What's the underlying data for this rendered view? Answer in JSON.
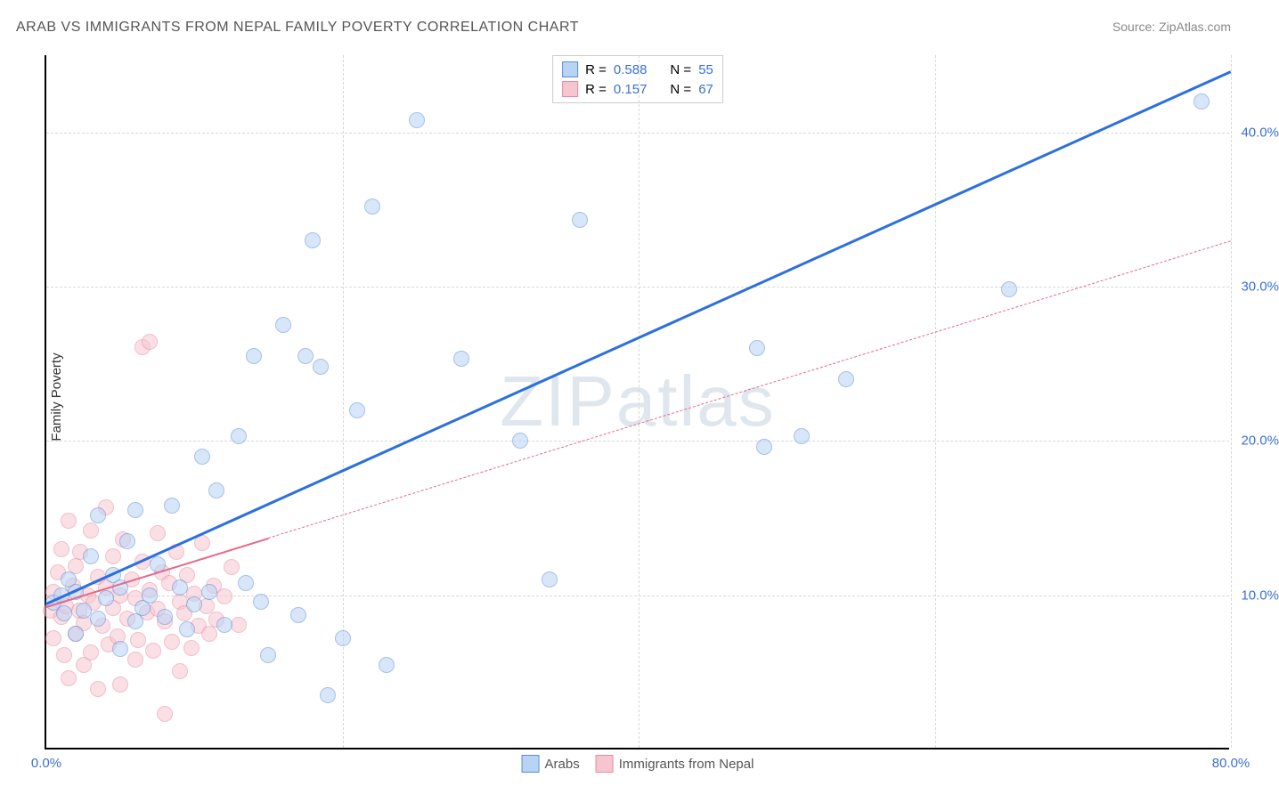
{
  "title": "ARAB VS IMMIGRANTS FROM NEPAL FAMILY POVERTY CORRELATION CHART",
  "source": "Source: ZipAtlas.com",
  "ylabel": "Family Poverty",
  "watermark": "ZIPatlas",
  "watermark_color": "#dfe6ed",
  "xlim": [
    0,
    80
  ],
  "ylim": [
    0,
    45
  ],
  "xticks": [
    {
      "v": 0,
      "label": "0.0%"
    },
    {
      "v": 80,
      "label": "80.0%"
    }
  ],
  "yticks": [
    {
      "v": 10,
      "label": "10.0%"
    },
    {
      "v": 20,
      "label": "20.0%"
    },
    {
      "v": 30,
      "label": "30.0%"
    },
    {
      "v": 40,
      "label": "40.0%"
    }
  ],
  "x_gridlines": [
    20,
    40,
    60,
    80
  ],
  "y_gridlines": [
    10,
    20,
    30,
    40
  ],
  "tick_color": "#3b6fd8",
  "grid_color": "#d8d8d8",
  "point_radius": 9,
  "point_opacity": 0.55,
  "series": {
    "arabs": {
      "label": "Arabs",
      "fill": "#b9d3f5",
      "stroke": "#5b8fd6",
      "trend_color": "#2b6fe0",
      "trend_width": 3,
      "trend_dash": "none",
      "R": "0.588",
      "N": "55",
      "trend": {
        "x1": 0,
        "y1": 9.5,
        "x2": 80,
        "y2": 44
      },
      "points": [
        [
          0.5,
          9.5
        ],
        [
          1,
          10
        ],
        [
          1.2,
          8.8
        ],
        [
          1.5,
          11
        ],
        [
          2,
          10.2
        ],
        [
          2,
          7.5
        ],
        [
          2.5,
          9
        ],
        [
          3,
          12.5
        ],
        [
          3.5,
          8.5
        ],
        [
          3.5,
          15.2
        ],
        [
          4,
          9.8
        ],
        [
          4.5,
          11.3
        ],
        [
          5,
          10.5
        ],
        [
          5,
          6.5
        ],
        [
          5.5,
          13.5
        ],
        [
          6,
          8.3
        ],
        [
          6,
          15.5
        ],
        [
          6.5,
          9.2
        ],
        [
          7,
          10
        ],
        [
          7.5,
          12
        ],
        [
          8,
          8.6
        ],
        [
          8.5,
          15.8
        ],
        [
          9,
          10.5
        ],
        [
          9.5,
          7.8
        ],
        [
          10,
          9.4
        ],
        [
          10.5,
          19
        ],
        [
          11,
          10.2
        ],
        [
          11.5,
          16.8
        ],
        [
          12,
          8.1
        ],
        [
          13,
          20.3
        ],
        [
          13.5,
          10.8
        ],
        [
          14,
          25.5
        ],
        [
          14.5,
          9.6
        ],
        [
          15,
          6.1
        ],
        [
          16,
          27.5
        ],
        [
          17,
          8.7
        ],
        [
          17.5,
          25.5
        ],
        [
          18,
          33
        ],
        [
          18.5,
          24.8
        ],
        [
          19,
          3.5
        ],
        [
          20,
          7.2
        ],
        [
          21,
          22
        ],
        [
          22,
          35.2
        ],
        [
          23,
          5.5
        ],
        [
          25,
          40.8
        ],
        [
          28,
          25.3
        ],
        [
          32,
          20
        ],
        [
          34,
          11
        ],
        [
          36,
          34.3
        ],
        [
          48,
          26
        ],
        [
          48.5,
          19.6
        ],
        [
          51,
          20.3
        ],
        [
          54,
          24
        ],
        [
          65,
          29.8
        ],
        [
          78,
          42
        ]
      ]
    },
    "nepal": {
      "label": "Immigrants from Nepal",
      "fill": "#f6c6d0",
      "stroke": "#e88ba1",
      "trend_color": "#e56a88",
      "trend_width": 2,
      "trend_dash": "6,6",
      "R": "0.157",
      "N": "67",
      "trend": {
        "x1": 0,
        "y1": 9.3,
        "x2": 80,
        "y2": 33
      },
      "trend_solid_until": 15,
      "points": [
        [
          0.3,
          9
        ],
        [
          0.5,
          10.2
        ],
        [
          0.5,
          7.2
        ],
        [
          0.8,
          11.5
        ],
        [
          1,
          8.6
        ],
        [
          1,
          13
        ],
        [
          1.2,
          6.1
        ],
        [
          1.3,
          9.3
        ],
        [
          1.5,
          14.8
        ],
        [
          1.5,
          4.6
        ],
        [
          1.8,
          10.6
        ],
        [
          2,
          11.9
        ],
        [
          2,
          7.5
        ],
        [
          2.2,
          9
        ],
        [
          2.3,
          12.8
        ],
        [
          2.5,
          5.5
        ],
        [
          2.5,
          8.2
        ],
        [
          2.8,
          10
        ],
        [
          3,
          14.2
        ],
        [
          3,
          6.3
        ],
        [
          3.2,
          9.5
        ],
        [
          3.5,
          11.2
        ],
        [
          3.5,
          3.9
        ],
        [
          3.8,
          8
        ],
        [
          4,
          10.5
        ],
        [
          4,
          15.7
        ],
        [
          4.2,
          6.8
        ],
        [
          4.5,
          9.2
        ],
        [
          4.5,
          12.5
        ],
        [
          4.8,
          7.3
        ],
        [
          5,
          10
        ],
        [
          5,
          4.2
        ],
        [
          5.2,
          13.6
        ],
        [
          5.5,
          8.5
        ],
        [
          5.8,
          11
        ],
        [
          6,
          9.8
        ],
        [
          6,
          5.8
        ],
        [
          6.2,
          7.1
        ],
        [
          6.5,
          12.2
        ],
        [
          6.5,
          26.1
        ],
        [
          6.8,
          8.9
        ],
        [
          7,
          10.3
        ],
        [
          7,
          26.4
        ],
        [
          7.2,
          6.4
        ],
        [
          7.5,
          9.1
        ],
        [
          7.5,
          14
        ],
        [
          7.8,
          11.5
        ],
        [
          8,
          8.3
        ],
        [
          8,
          2.3
        ],
        [
          8.3,
          10.8
        ],
        [
          8.5,
          7
        ],
        [
          8.8,
          12.8
        ],
        [
          9,
          9.6
        ],
        [
          9,
          5.1
        ],
        [
          9.3,
          8.8
        ],
        [
          9.5,
          11.3
        ],
        [
          9.8,
          6.6
        ],
        [
          10,
          10.1
        ],
        [
          10.3,
          8
        ],
        [
          10.5,
          13.4
        ],
        [
          10.8,
          9.3
        ],
        [
          11,
          7.5
        ],
        [
          11.3,
          10.6
        ],
        [
          11.5,
          8.4
        ],
        [
          12,
          9.9
        ],
        [
          12.5,
          11.8
        ],
        [
          13,
          8.1
        ]
      ]
    }
  },
  "stats_legend": {
    "r_label": "R =",
    "n_label": "N ="
  }
}
